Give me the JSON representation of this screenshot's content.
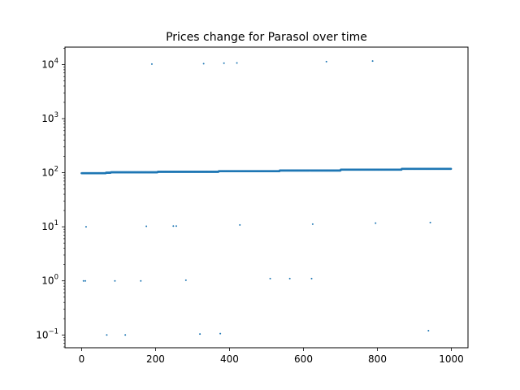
{
  "chart_data": {
    "type": "scatter",
    "title": "Prices change for Parasol over time",
    "xlabel": "",
    "ylabel": "",
    "xlim": [
      -45,
      1045
    ],
    "ylim": [
      0.058,
      21000
    ],
    "yscale": "log",
    "grid": false,
    "x_ticks": [
      0,
      200,
      400,
      600,
      800,
      1000
    ],
    "x_tick_labels": [
      "0",
      "200",
      "400",
      "600",
      "800",
      "1000"
    ],
    "y_ticks": [
      0.1,
      1,
      10,
      100,
      1000,
      10000
    ],
    "y_tick_labels": [
      {
        "base": "10",
        "exp": "−1"
      },
      {
        "base": "10",
        "exp": "0"
      },
      {
        "base": "10",
        "exp": "1"
      },
      {
        "base": "10",
        "exp": "2"
      },
      {
        "base": "10",
        "exp": "3"
      },
      {
        "base": "10",
        "exp": "4"
      }
    ],
    "series": [
      {
        "color": "#1f77b4",
        "baseline_steps": [
          {
            "x_start": 0,
            "x_end": 65,
            "y": 98
          },
          {
            "x_start": 66,
            "x_end": 78,
            "y": 100
          },
          {
            "x_start": 79,
            "x_end": 205,
            "y": 102
          },
          {
            "x_start": 206,
            "x_end": 370,
            "y": 104
          },
          {
            "x_start": 371,
            "x_end": 535,
            "y": 107
          },
          {
            "x_start": 536,
            "x_end": 700,
            "y": 110
          },
          {
            "x_start": 701,
            "x_end": 865,
            "y": 114
          },
          {
            "x_start": 866,
            "x_end": 999,
            "y": 118
          }
        ],
        "outliers": [
          {
            "x": 5,
            "y": 1.0
          },
          {
            "x": 10,
            "y": 1.0
          },
          {
            "x": 12,
            "y": 10.0
          },
          {
            "x": 68,
            "y": 0.1
          },
          {
            "x": 90,
            "y": 1.0
          },
          {
            "x": 118,
            "y": 0.1
          },
          {
            "x": 160,
            "y": 1.0
          },
          {
            "x": 175,
            "y": 10.2
          },
          {
            "x": 190,
            "y": 10200
          },
          {
            "x": 248,
            "y": 10.3
          },
          {
            "x": 256,
            "y": 10.3
          },
          {
            "x": 282,
            "y": 1.03
          },
          {
            "x": 320,
            "y": 0.104
          },
          {
            "x": 330,
            "y": 10400
          },
          {
            "x": 375,
            "y": 0.106
          },
          {
            "x": 385,
            "y": 10600
          },
          {
            "x": 420,
            "y": 10700
          },
          {
            "x": 428,
            "y": 10.8
          },
          {
            "x": 510,
            "y": 1.1
          },
          {
            "x": 563,
            "y": 1.1
          },
          {
            "x": 622,
            "y": 1.1
          },
          {
            "x": 625,
            "y": 11.2
          },
          {
            "x": 662,
            "y": 11300
          },
          {
            "x": 787,
            "y": 11600
          },
          {
            "x": 795,
            "y": 11.7
          },
          {
            "x": 938,
            "y": 0.12
          },
          {
            "x": 943,
            "y": 12.0
          }
        ]
      }
    ]
  }
}
